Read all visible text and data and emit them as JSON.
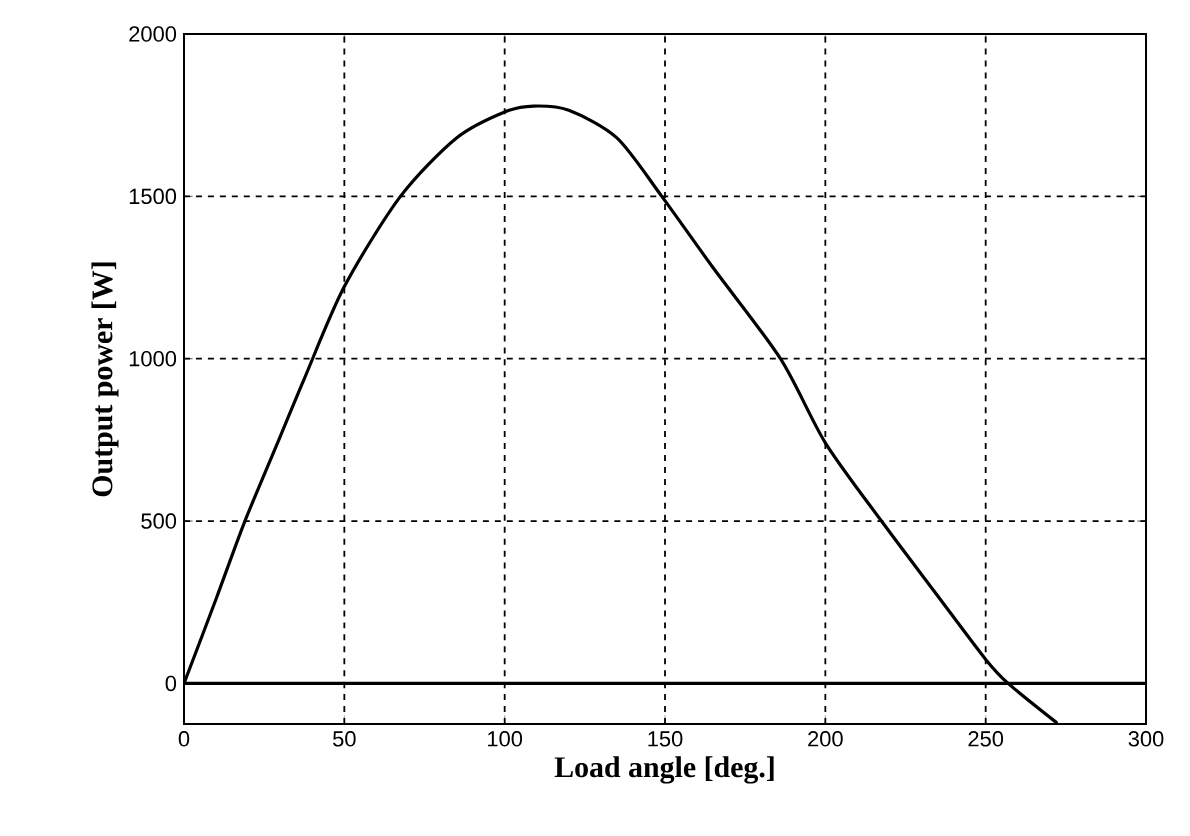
{
  "chart_data": {
    "type": "line",
    "xlabel": "Load angle [deg.]",
    "ylabel": "Output power [W]",
    "x": [
      0,
      10,
      19,
      30,
      37.5,
      50,
      67.5,
      85,
      100,
      109,
      120,
      135,
      149,
      165,
      186,
      200,
      217.5,
      235,
      250,
      257,
      272
    ],
    "series": [
      {
        "color": "#000000",
        "values": [
          0,
          260,
          500,
          760,
          938,
          1222,
          1500,
          1680,
          1760,
          1778,
          1765,
          1680,
          1500,
          1280,
          1000,
          741,
          500,
          270,
          74,
          0,
          -120
        ]
      },
      {
        "color": "#000000",
        "x": [
          0,
          300
        ],
        "values": [
          0,
          0
        ]
      }
    ],
    "xlim": [
      0,
      300
    ],
    "ylim": [
      -125,
      2000
    ],
    "xticks": [
      0,
      50,
      100,
      150,
      200,
      250,
      300
    ],
    "yticks": [
      0,
      500,
      1000,
      1500,
      2000
    ],
    "grid": true,
    "marker": "none",
    "line_style": "solid"
  }
}
